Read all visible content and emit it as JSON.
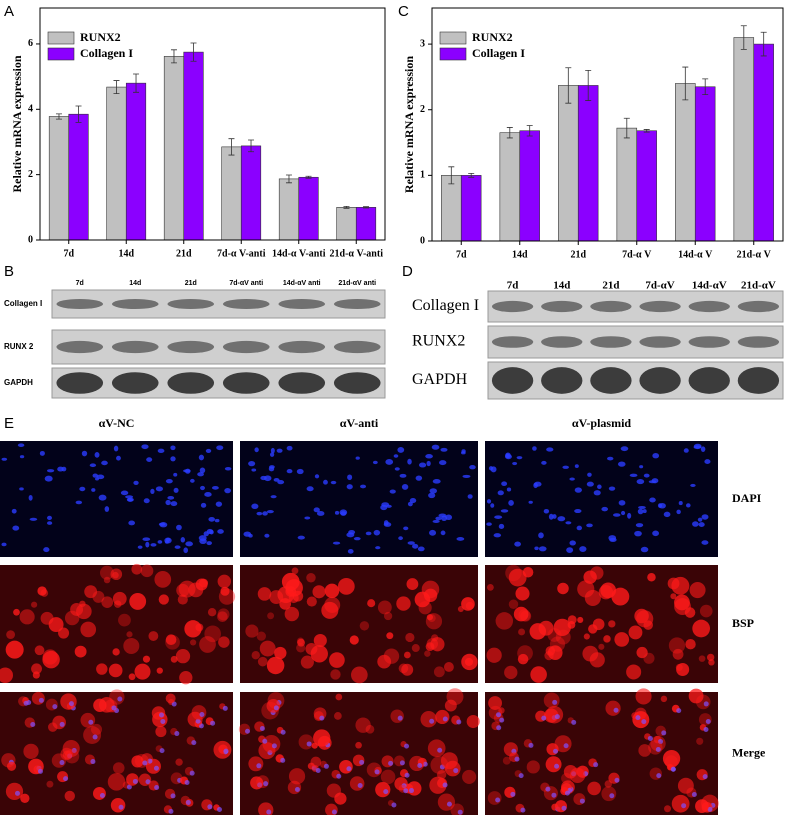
{
  "chart_data": [
    {
      "type": "bar",
      "panel": "A",
      "y_label": "Relative mRNA expression",
      "categories": [
        "7d",
        "14d",
        "21d",
        "7d-α V-anti",
        "14d-α V-anti",
        "21d-α V-anti"
      ],
      "series": [
        {
          "name": "RUNX2",
          "color": "#c0c0c0",
          "values": [
            3.78,
            4.68,
            5.62,
            2.85,
            1.87,
            1.0
          ],
          "errors": [
            0.08,
            0.2,
            0.2,
            0.25,
            0.12,
            0.03
          ]
        },
        {
          "name": "Collagen I",
          "color": "#8b00ff",
          "values": [
            3.85,
            4.8,
            5.75,
            2.88,
            1.92,
            1.0
          ],
          "errors": [
            0.25,
            0.28,
            0.28,
            0.18,
            0.03,
            0.02
          ]
        }
      ],
      "ylim": [
        0,
        7.1
      ],
      "yticks": [
        0,
        2,
        4,
        6
      ],
      "legend": "upper left"
    },
    {
      "type": "bar",
      "panel": "C",
      "y_label": "Relative mRNA expression",
      "categories": [
        "7d",
        "14d",
        "21d",
        "7d-α V",
        "14d-α V",
        "21d-α V"
      ],
      "series": [
        {
          "name": "RUNX2",
          "color": "#c0c0c0",
          "values": [
            1.0,
            1.65,
            2.37,
            1.72,
            2.4,
            3.1
          ],
          "errors": [
            0.13,
            0.08,
            0.27,
            0.15,
            0.25,
            0.18
          ]
        },
        {
          "name": "Collagen I",
          "color": "#8b00ff",
          "values": [
            1.0,
            1.68,
            2.37,
            1.68,
            2.35,
            3.0
          ],
          "errors": [
            0.03,
            0.08,
            0.23,
            0.02,
            0.12,
            0.18
          ]
        }
      ],
      "ylim": [
        0,
        3.55
      ],
      "yticks": [
        0,
        1,
        2,
        3
      ],
      "legend": "upper left"
    }
  ],
  "blots": [
    {
      "panel": "B",
      "lanes": [
        "7d",
        "14d",
        "21d",
        "7d-αV anti",
        "14d-αV anti",
        "21d-αV anti"
      ],
      "rows": [
        "Collagen I",
        "RUNX 2",
        "GAPDH"
      ]
    },
    {
      "panel": "D",
      "lanes": [
        "7d",
        "14d",
        "21d",
        "7d-αV",
        "14d-αV",
        "21d-αV"
      ],
      "rows": [
        "Collagen I",
        "RUNX2",
        "GAPDH"
      ]
    }
  ],
  "images": {
    "panel": "E",
    "columns": [
      "αV-NC",
      "αV-anti",
      "αV-plasmid"
    ],
    "rows": [
      "DAPI",
      "BSP",
      "Merge"
    ]
  }
}
